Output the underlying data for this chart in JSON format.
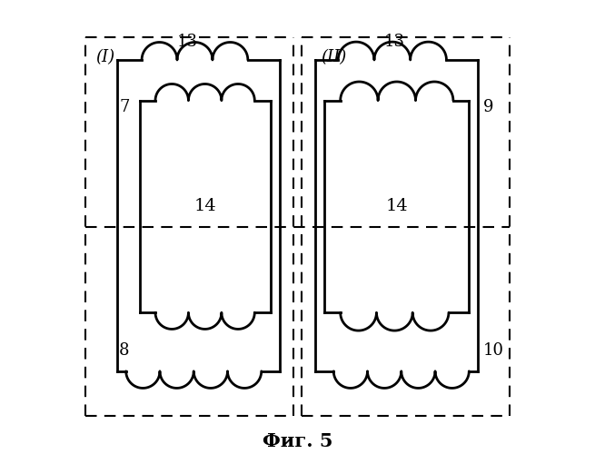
{
  "fig_title": "Фиг. 5",
  "bg_color": "#ffffff",
  "line_color": "#000000",
  "dash_color": "#000000",
  "label_I": "(I)",
  "label_II": "(II)",
  "label_7": "7",
  "label_8": "8",
  "label_9": "9",
  "label_10": "10",
  "label_13": "13",
  "label_14": "14",
  "figsize": [
    6.55,
    5.0
  ],
  "dpi": 100
}
